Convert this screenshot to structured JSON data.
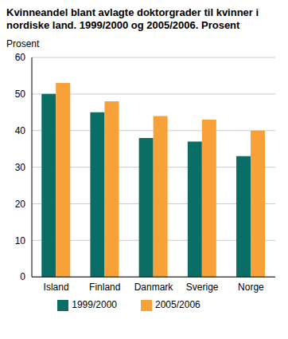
{
  "chart_data": {
    "type": "bar",
    "title": "Kvinneandel blant avlagte doktorgrader til kvinner i nordiske land. 1999/2000 og 2005/2006. Prosent",
    "y_label": "Prosent",
    "categories": [
      "Island",
      "Finland",
      "Danmark",
      "Sverige",
      "Norge"
    ],
    "series": [
      {
        "name": "1999/2000",
        "color": "#0b6e66",
        "values": [
          50,
          45,
          38,
          37,
          33
        ]
      },
      {
        "name": "2005/2006",
        "color": "#f7a138",
        "values": [
          53,
          48,
          44,
          43,
          40
        ]
      }
    ],
    "ylim": [
      0,
      60
    ],
    "yticks": [
      0,
      10,
      20,
      30,
      40,
      50,
      60
    ],
    "grid": true,
    "legend": "bottom"
  }
}
